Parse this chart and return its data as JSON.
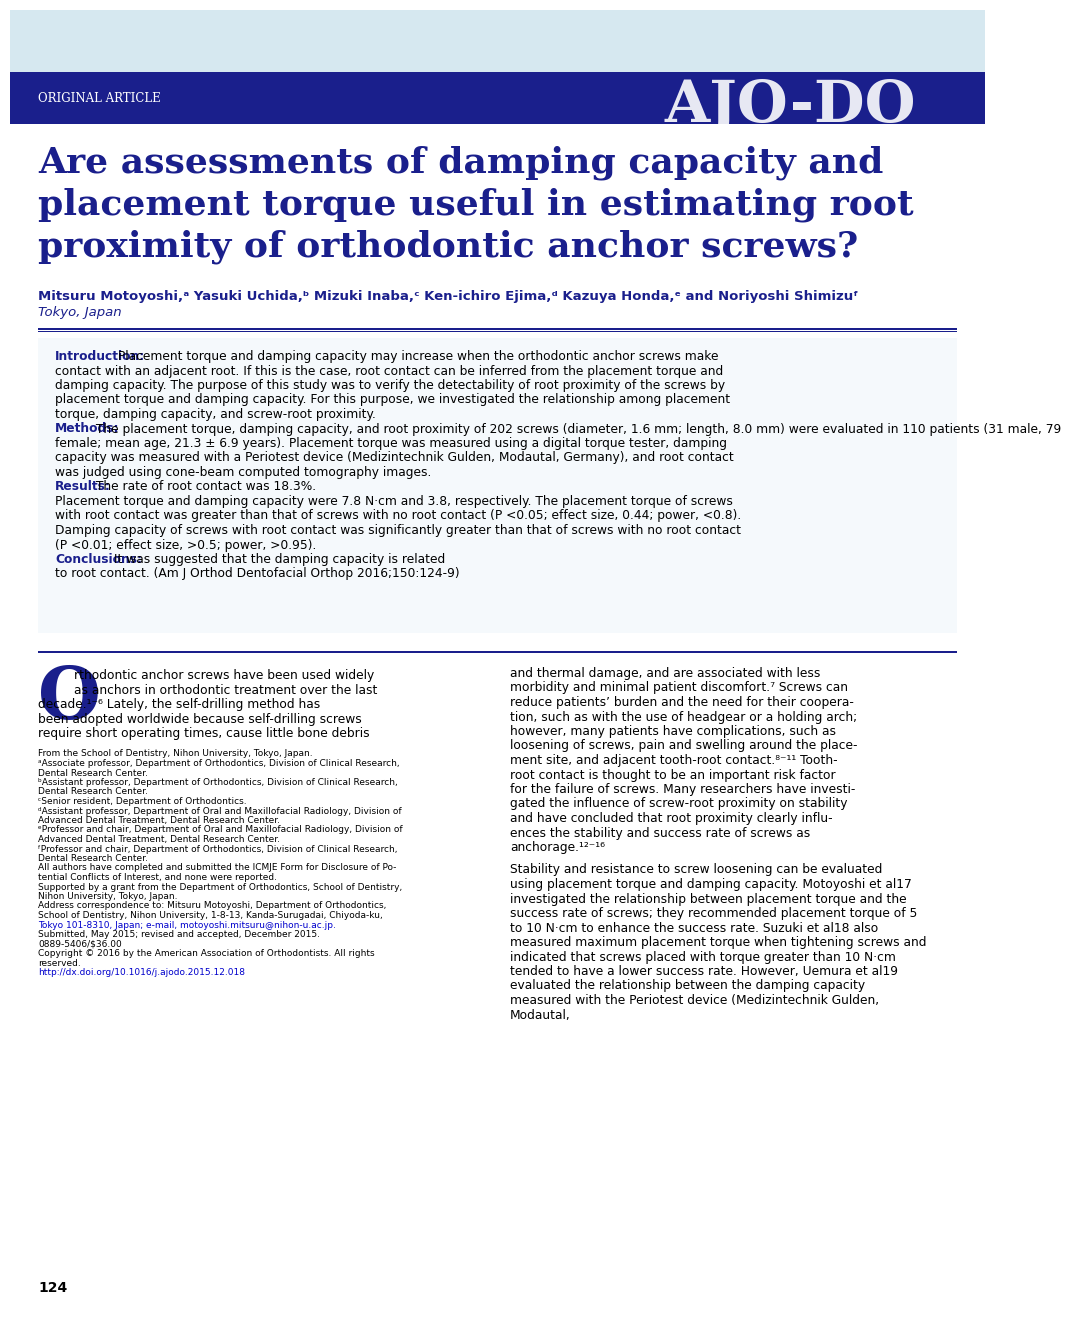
{
  "header_bg_light": "#d6e8f0",
  "header_bg_dark": "#1a1f8c",
  "header_text": "ORIGINAL ARTICLE",
  "header_logo": "AJO-DO",
  "title": "Are assessments of damping capacity and\nplacement torque useful in estimating root\nproximity of orthodontic anchor screws?",
  "authors": "Mitsuru Motoyoshi,² Yasuki Uchida,ᵇ Mizuki Inaba,ᶜ Ken-ichiro Ejima,ᵈ Kazuya Honda,ᵉ and Noriyoshi Shimizuᶠ",
  "authors_plain": "Mitsuru Motoyoshi,",
  "affiliation": "Tokyo, Japan",
  "divider_color": "#1a1f8c",
  "abstract_intro_label": "Introduction:",
  "abstract_methods_label": "Methods:",
  "abstract_results_label": "Results:",
  "abstract_conclusions_label": "Conclusions:",
  "abstract_text_intro": "Placement torque and damping capacity may increase when the orthodontic anchor screws make contact with an adjacent root. If this is the case, root contact can be inferred from the placement torque and damping capacity. The purpose of this study was to verify the detectability of root proximity of the screws by placement torque and damping capacity. For this purpose, we investigated the relationship among placement torque, damping capacity, and screw-root proximity. ",
  "abstract_text_methods": "The placement torque, damping capacity, and root proximity of 202 screws (diameter, 1.6 mm; length, 8.0 mm) were evaluated in 110 patients (31 male, 79 female; mean age, 21.3 ± 6.9 years). Placement torque was measured using a digital torque tester, damping capacity was measured with a Periotest device (Medizintechnik Gulden, Modautal, Germany), and root contact was judged using cone-beam computed tomography images. ",
  "abstract_text_results": "The rate of root contact was 18.3%. Placement torque and damping capacity were 7.8 N·cm and 3.8, respectively. The placement torque of screws with root contact was greater than that of screws with no root contact (",
  "abstract_results_p1": "P",
  "abstract_text_results2": " <0.05; effect size, 0.44; power, <0.8). Damping capacity of screws with root contact was significantly greater than that of screws with no root contact (",
  "abstract_results_p2": "P",
  "abstract_text_results3": " <0.01; effect size, >0.5; power, >0.95). ",
  "abstract_text_conclusions": "It was suggested that the damping capacity is related to root contact. (Am J Orthod Dentofacial Orthop 2016;150:124-9)",
  "body_dropcap": "O",
  "body_col1_text": "rthodontic anchor screws have been used widely as anchors in orthodontic treatment over the last decade.1-6 Lately, the self-drilling method has been adopted worldwide because self-drilling screws require short operating times, cause little bone debris",
  "body_col2_text": "and thermal damage, and are associated with less morbidity and minimal patient discomfort.7 Screws can reduce patients' burden and the need for their cooperation, such as with the use of headgear or a holding arch; however, many patients have complications, such as loosening of screws, pain and swelling around the placement site, and adjacent tooth-root contact.8-11 Tooth-root contact is thought to be an important risk factor for the failure of screws. Many researchers have investigated the influence of screw-root proximity on stability and have concluded that root proximity clearly influences the stability and success rate of screws as anchorage.12-16",
  "footnote_col1": "From the School of Dentistry, Nihon University, Tokyo, Japan.\nᵃAssociate professor, Department of Orthodontics, Division of Clinical Research,\nDental Research Center.\nᵇAssistant professor, Department of Orthodontics, Division of Clinical Research,\nDental Research Center.\nᶜSenior resident, Department of Orthodontics.\nᵈAssistant professor, Department of Oral and Maxillofacial Radiology, Division of\nAdvanced Dental Treatment, Dental Research Center.\nᵉProfessor and chair, Department of Oral and Maxillofacial Radiology, Division of\nAdvanced Dental Treatment, Dental Research Center.\nᶠProfessor and chair, Department of Orthodontics, Division of Clinical Research,\nDental Research Center.\nAll authors have completed and submitted the ICMJE Form for Disclosure of Po-\ntential Conflicts of Interest, and none were reported.\nSupported by a grant from the Department of Orthodontics, School of Dentistry,\nNihon University, Tokyo, Japan.\nAddress correspondence to: Mitsuru Motoyoshi, Department of Orthodontics,\nSchool of Dentistry, Nihon University, 1-8-13, Kanda-Surugadai, Chiyoda-ku,\nTokyo 101-8310, Japan; e-mail, motoyoshi.mitsuru@nihon-u.ac.jp.\nSubmitted, May 2015; revised and accepted, December 2015.\n0889-5406/$36.00\nCopyright © 2016 by the American Association of Orthodontists. All rights\nreserved.\nhttp://dx.doi.org/10.1016/j.ajodo.2015.12.018",
  "page_number": "124",
  "stability_text": "Stability and resistance to screw loosening can be evaluated using placement torque and damping capacity. Motoyoshi et al17 investigated the relationship between placement torque and the success rate of screws; they recommended placement torque of 5 to 10 N·cm to enhance the success rate. Suzuki et al18 also measured maximum placement torque when tightening screws and indicated that screws placed with torque greater than 10 N·cm tended to have a lower success rate. However, Uemura et al19 evaluated the relationship between the damping capacity measured with the Periotest device (Medizintechnik Gulden, Modautal,",
  "blue_dark": "#1a1f8c",
  "blue_link": "#0000ee",
  "text_color": "#000000",
  "bg_color": "#ffffff",
  "abstract_bg": "#f0f8ff"
}
